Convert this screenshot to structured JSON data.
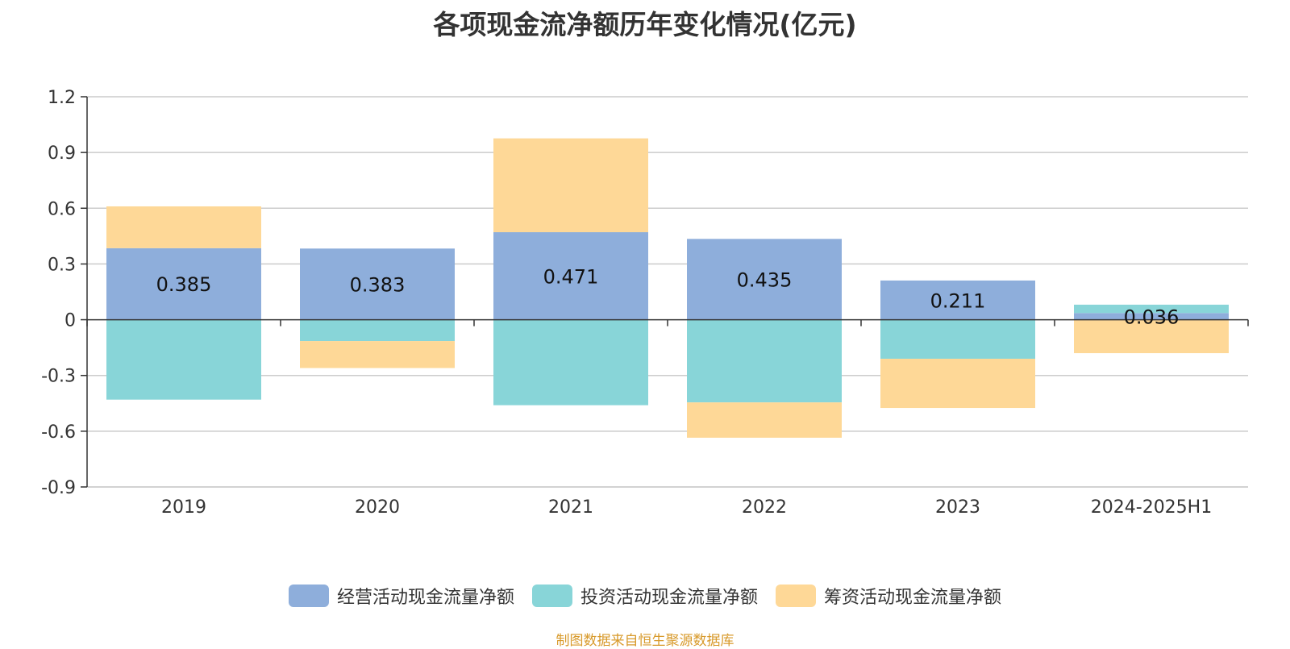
{
  "chart_data": {
    "type": "bar",
    "stacked": true,
    "title": "各项现金流净额历年变化情况(亿元)",
    "categories": [
      "2019",
      "2020",
      "2021",
      "2022",
      "2023",
      "2024-2025H1"
    ],
    "series": [
      {
        "name": "经营活动现金流量净额",
        "color": "#8eaedb",
        "values": [
          0.385,
          0.383,
          0.471,
          0.435,
          0.211,
          0.036
        ]
      },
      {
        "name": "投资活动现金流量净额",
        "color": "#88d5d8",
        "values": [
          -0.43,
          -0.115,
          -0.46,
          -0.445,
          -0.21,
          0.045
        ]
      },
      {
        "name": "筹资活动现金流量净额",
        "color": "#fed897",
        "values": [
          0.225,
          -0.145,
          0.505,
          -0.19,
          -0.265,
          -0.18
        ]
      }
    ],
    "data_labels": [
      "0.385",
      "0.383",
      "0.471",
      "0.435",
      "0.211",
      "0.036"
    ],
    "yticks": [
      "1.2",
      "0.9",
      "0.6",
      "0.3",
      "0",
      "-0.3",
      "-0.6",
      "-0.9"
    ],
    "ylim": [
      -0.9,
      1.2
    ],
    "grid": true,
    "legend_position": "bottom"
  },
  "source_text": "制图数据来自恒生聚源数据库"
}
